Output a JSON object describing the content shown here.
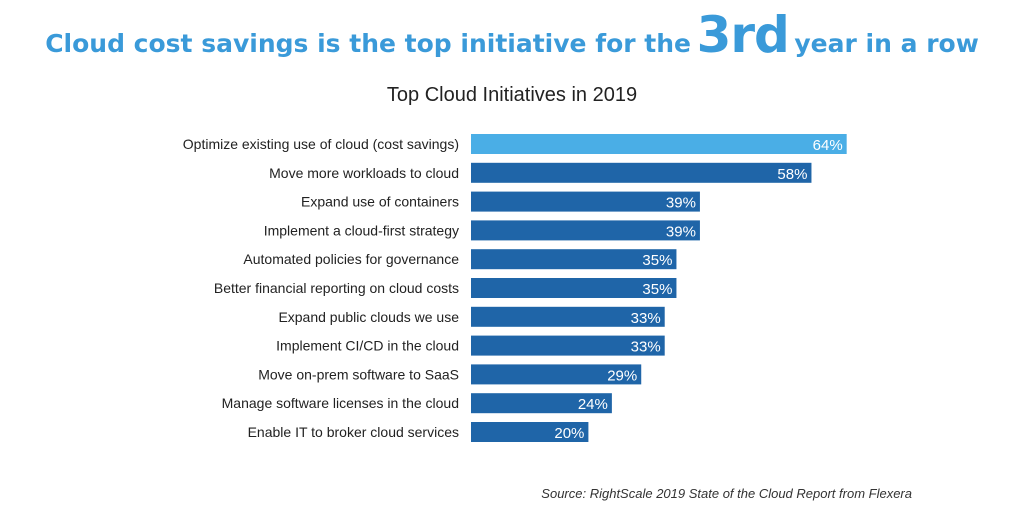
{
  "headline": {
    "part1": "Cloud cost savings is the top initiative for the",
    "emphasis": "3rd",
    "part2": "year in a row"
  },
  "source": "Source: RightScale 2019 State of the Cloud Report from Flexera",
  "colors": {
    "headline": "#3a9ad9",
    "highlight_bar": "#4aaee6",
    "bar": "#1f65a8"
  },
  "chart_data": {
    "type": "bar",
    "orientation": "horizontal",
    "title": "Top Cloud Initiatives in 2019",
    "xlabel": "",
    "ylabel": "",
    "xlim": [
      0,
      100
    ],
    "value_suffix": "%",
    "highlight_index": 0,
    "categories": [
      "Optimize existing use of cloud (cost savings)",
      "Move more workloads to cloud",
      "Expand use of containers",
      "Implement a cloud-first strategy",
      "Automated policies for governance",
      "Better financial reporting on cloud costs",
      "Expand public clouds we use",
      "Implement CI/CD in the cloud",
      "Move on-prem software to SaaS",
      "Manage software licenses in the cloud",
      "Enable IT to broker cloud services"
    ],
    "values": [
      64,
      58,
      39,
      39,
      35,
      35,
      33,
      33,
      29,
      24,
      20
    ],
    "value_labels": [
      "64%",
      "58%",
      "39%",
      "39%",
      "35%",
      "35%",
      "33%",
      "33%",
      "29%",
      "24%",
      "20%"
    ]
  }
}
